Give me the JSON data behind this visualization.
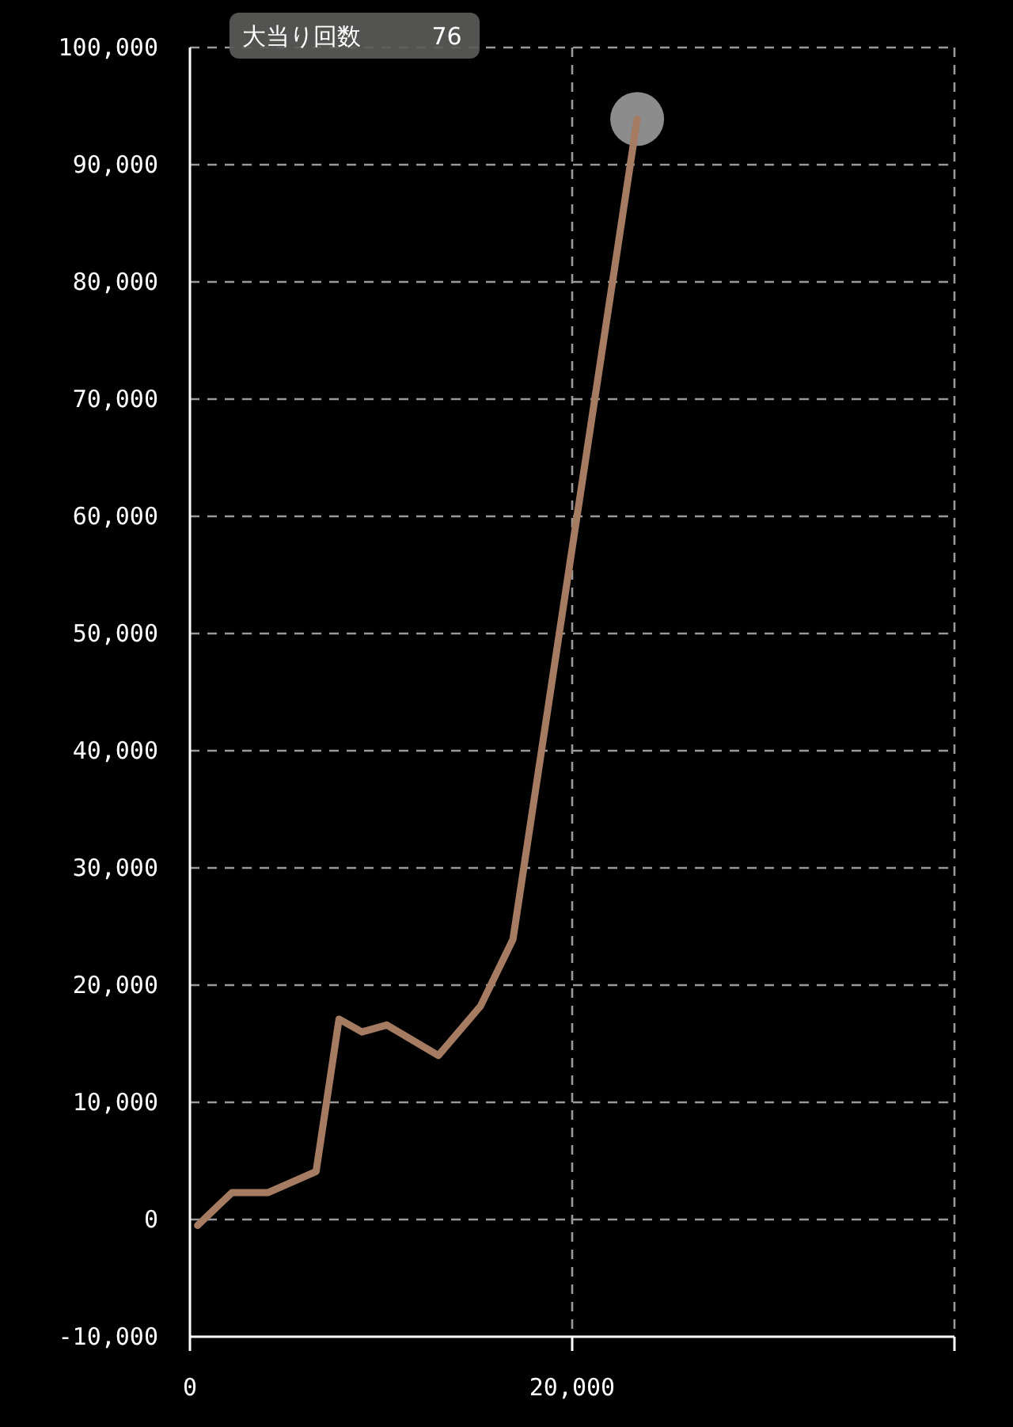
{
  "chart_data": {
    "type": "line",
    "x": [
      400,
      2200,
      4100,
      6600,
      7800,
      9000,
      10300,
      13000,
      15200,
      16900,
      23400
    ],
    "series": [
      {
        "color": "#a57b62",
        "values": [
          -500,
          2300,
          2300,
          4100,
          17100,
          16000,
          16600,
          14000,
          18200,
          23900,
          93900
        ]
      }
    ],
    "xlim": [
      0,
      40000
    ],
    "xticks": [
      {
        "value": 0,
        "label": "0"
      },
      {
        "value": 20000,
        "label": "20,000"
      },
      {
        "value": 40000,
        "label": null
      }
    ],
    "ylim": [
      -10000,
      100000
    ],
    "yticks": [
      {
        "value": -10000,
        "label": "-10,000"
      },
      {
        "value": 0,
        "label": "0"
      },
      {
        "value": 10000,
        "label": "10,000"
      },
      {
        "value": 20000,
        "label": "20,000"
      },
      {
        "value": 30000,
        "label": "30,000"
      },
      {
        "value": 40000,
        "label": "40,000"
      },
      {
        "value": 50000,
        "label": "50,000"
      },
      {
        "value": 60000,
        "label": "60,000"
      },
      {
        "value": 70000,
        "label": "70,000"
      },
      {
        "value": 80000,
        "label": "80,000"
      },
      {
        "value": 90000,
        "label": "90,000"
      },
      {
        "value": 100000,
        "label": "100,000"
      }
    ],
    "grid": true,
    "annotations": [
      "大当り回数 76"
    ]
  }
}
